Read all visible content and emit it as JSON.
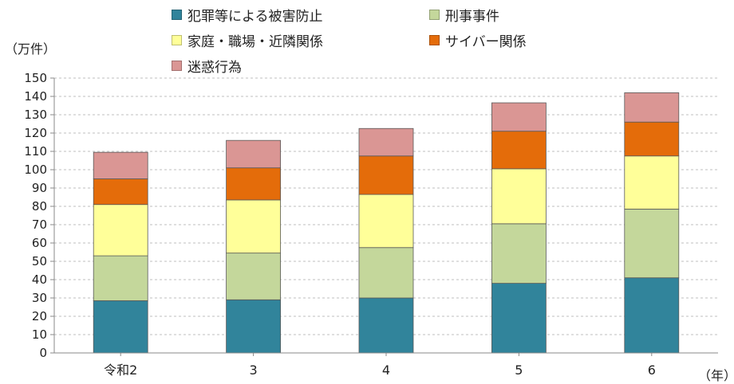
{
  "chart_data": {
    "type": "bar",
    "stacked": true,
    "categories": [
      "令和2",
      "3",
      "4",
      "5",
      "6"
    ],
    "series": [
      {
        "name": "犯罪等による被害防止",
        "color": "#31849b",
        "values": [
          28.5,
          29,
          30,
          38,
          41
        ]
      },
      {
        "name": "刑事事件",
        "color": "#c4d79b",
        "values": [
          24.5,
          25.5,
          27.5,
          32.5,
          37.5
        ]
      },
      {
        "name": "家庭・職場・近隣関係",
        "color": "#ffff99",
        "values": [
          28,
          29,
          29,
          30,
          29
        ]
      },
      {
        "name": "サイバー関係",
        "color": "#e46c0a",
        "values": [
          14,
          17.5,
          21,
          20.5,
          18.5
        ]
      },
      {
        "name": "迷惑行為",
        "color": "#da9694",
        "values": [
          14.5,
          15,
          15,
          15.5,
          16
        ]
      }
    ],
    "ylabel": "（万件）",
    "xlabel": "（年）",
    "ylim": [
      0,
      150
    ],
    "yticks": [
      0,
      10,
      20,
      30,
      40,
      50,
      60,
      70,
      80,
      90,
      100,
      110,
      120,
      130,
      140,
      150
    ],
    "grid": "horizontal-dashed",
    "legend": "top"
  }
}
